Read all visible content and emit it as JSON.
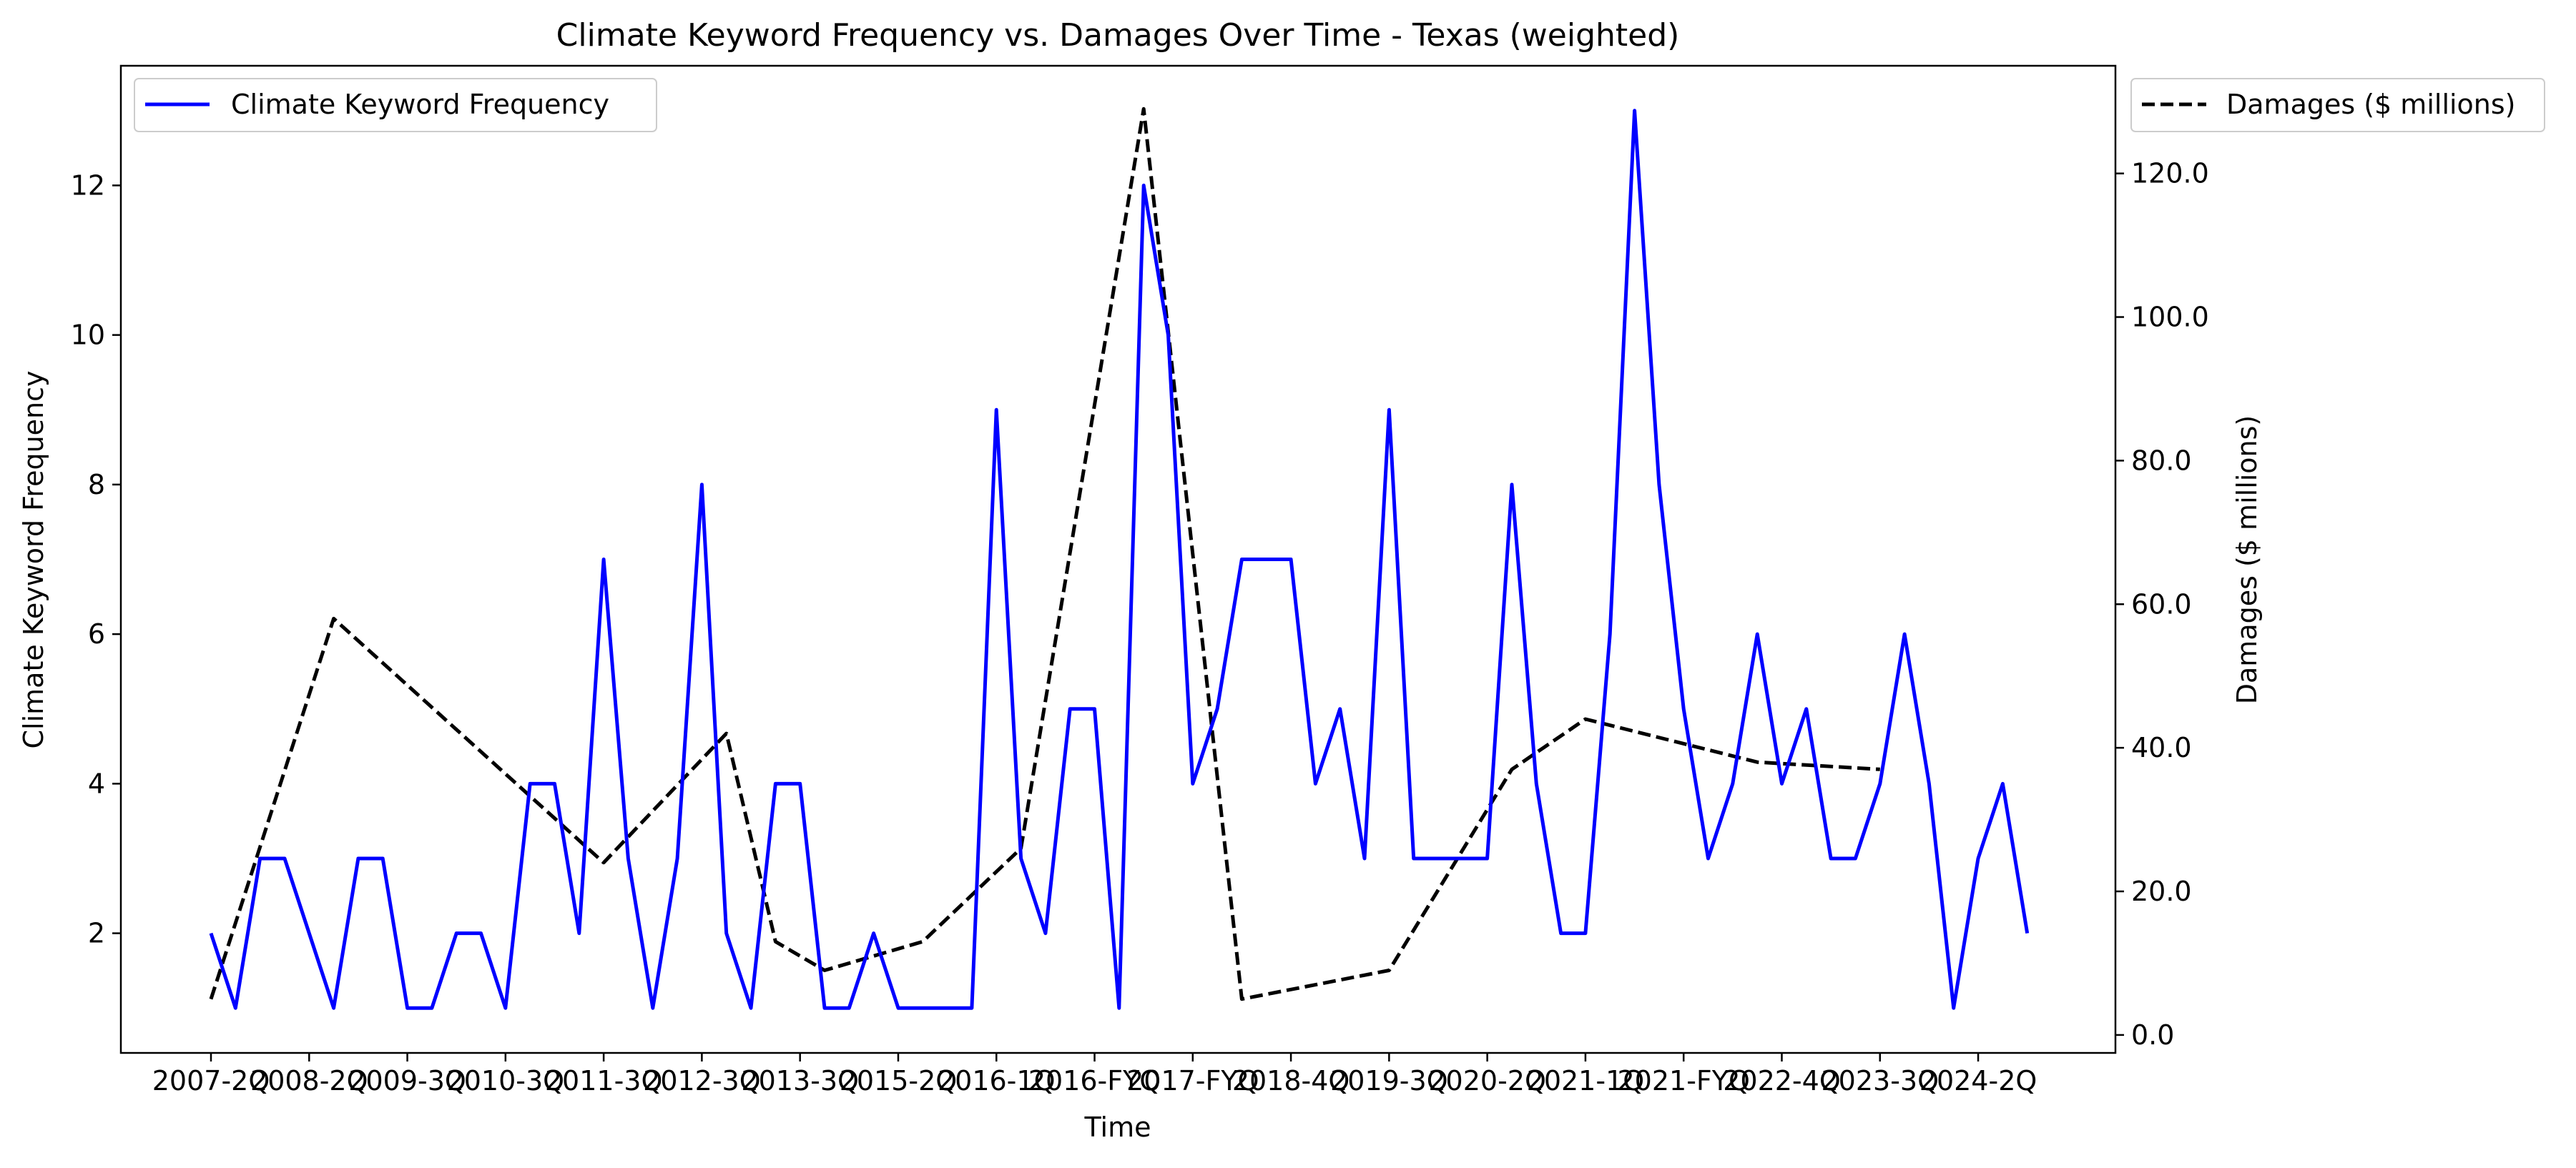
{
  "chart_data": {
    "type": "line",
    "title": "Climate Keyword Frequency vs. Damages Over Time - Texas (weighted)",
    "xlabel": "Time",
    "ylabel_left": "Climate Keyword Frequency",
    "ylabel_right": "Damages ($ millions)",
    "x_tick_labels": [
      "2007-2Q",
      "2008-2Q",
      "2009-3Q",
      "2010-3Q",
      "2011-3Q",
      "2012-3Q",
      "2013-3Q",
      "2015-2Q",
      "2016-1Q",
      "2016-FYQ",
      "2017-FYQ",
      "2018-4Q",
      "2019-3Q",
      "2020-2Q",
      "2021-1Q",
      "2021-FYQ",
      "2022-4Q",
      "2023-3Q",
      "2024-2Q"
    ],
    "y_left_ticks": [
      "2",
      "4",
      "6",
      "8",
      "10",
      "12"
    ],
    "y_right_ticks": [
      "0.0",
      "20.0",
      "40.0",
      "60.0",
      "80.0",
      "100.0",
      "120.0"
    ],
    "y_left_lim": [
      0.4,
      13.6
    ],
    "y_right_lim": [
      -2.5,
      135
    ],
    "grid": false,
    "series": [
      {
        "name": "Climate Keyword Frequency",
        "axis": "left",
        "color": "#0000ff",
        "style": "solid",
        "legend_position": "upper-left",
        "values": [
          2,
          1,
          3,
          3,
          2,
          1,
          3,
          3,
          1,
          1,
          2,
          2,
          1,
          4,
          4,
          2,
          7,
          3,
          1,
          3,
          8,
          2,
          1,
          4,
          4,
          1,
          1,
          2,
          1,
          1,
          1,
          1,
          9,
          3,
          2,
          5,
          5,
          1,
          12,
          10,
          4,
          5,
          7,
          7,
          7,
          4,
          5,
          3,
          9,
          3,
          3,
          3,
          3,
          8,
          4,
          2,
          2,
          6,
          13,
          8,
          5,
          3,
          4,
          6,
          4,
          5,
          3,
          3,
          4,
          6,
          4,
          1,
          3,
          4,
          2
        ]
      },
      {
        "name": "Damages ($ millions)",
        "axis": "right",
        "color": "#000000",
        "style": "dashed",
        "legend_position": "outside-upper-right",
        "points": [
          {
            "x_index": 0,
            "value": 5
          },
          {
            "x_index": 5,
            "value": 58
          },
          {
            "x_index": 16,
            "value": 24
          },
          {
            "x_index": 21,
            "value": 42
          },
          {
            "x_index": 23,
            "value": 13
          },
          {
            "x_index": 25,
            "value": 9
          },
          {
            "x_index": 29,
            "value": 13
          },
          {
            "x_index": 33,
            "value": 26
          },
          {
            "x_index": 38,
            "value": 129
          },
          {
            "x_index": 42,
            "value": 5
          },
          {
            "x_index": 48,
            "value": 9
          },
          {
            "x_index": 53,
            "value": 37
          },
          {
            "x_index": 56,
            "value": 44
          },
          {
            "x_index": 63,
            "value": 38
          },
          {
            "x_index": 68,
            "value": 37
          }
        ]
      }
    ]
  }
}
